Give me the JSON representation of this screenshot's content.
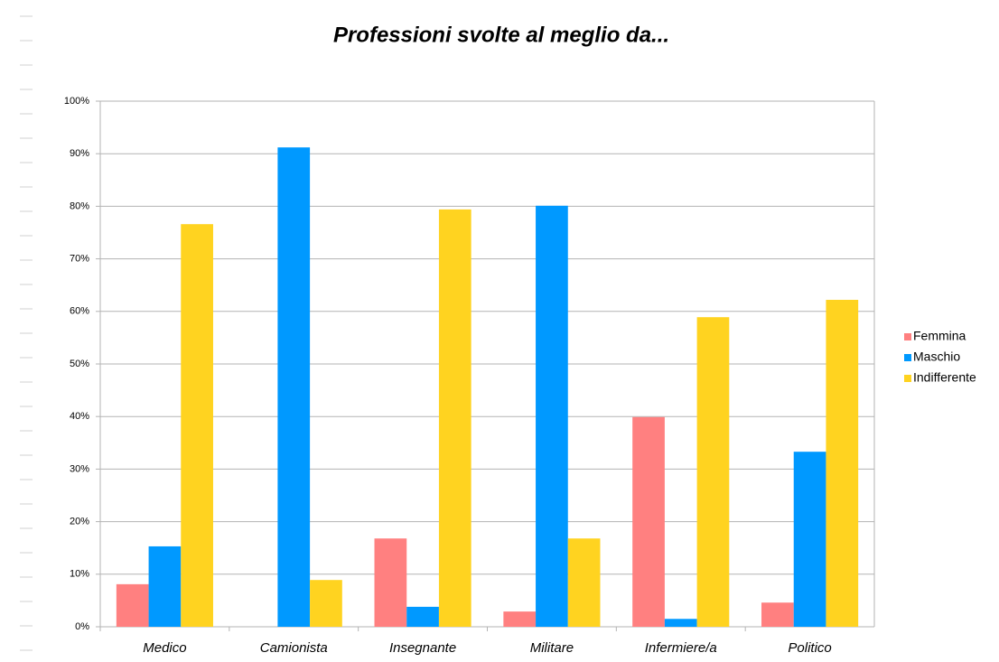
{
  "chart_data": {
    "type": "bar",
    "title": "Professioni svolte al meglio da...",
    "categories": [
      "Medico",
      "Camionista",
      "Insegnante",
      "Militare",
      "Infermiere/a",
      "Politico"
    ],
    "series": [
      {
        "name": "Femmina",
        "color": "#ff8080",
        "values": [
          8.1,
          0,
          16.8,
          2.9,
          39.9,
          4.6
        ]
      },
      {
        "name": "Maschio",
        "color": "#0099ff",
        "values": [
          15.3,
          91.2,
          3.8,
          80.1,
          1.5,
          33.3
        ]
      },
      {
        "name": "Indifferente",
        "color": "#ffd320",
        "values": [
          76.6,
          8.9,
          79.4,
          16.8,
          58.9,
          62.2
        ]
      }
    ],
    "ylim": [
      0,
      100
    ],
    "yticks": [
      {
        "value": 0,
        "label": "0%"
      },
      {
        "value": 10,
        "label": "10%"
      },
      {
        "value": 20,
        "label": "20%"
      },
      {
        "value": 30,
        "label": "30%"
      },
      {
        "value": 40,
        "label": "40%"
      },
      {
        "value": 50,
        "label": "50%"
      },
      {
        "value": 60,
        "label": "60%"
      },
      {
        "value": 70,
        "label": "70%"
      },
      {
        "value": 80,
        "label": "80%"
      },
      {
        "value": 90,
        "label": "90%"
      },
      {
        "value": 100,
        "label": "100%"
      }
    ],
    "grid": true,
    "legend": "right"
  }
}
